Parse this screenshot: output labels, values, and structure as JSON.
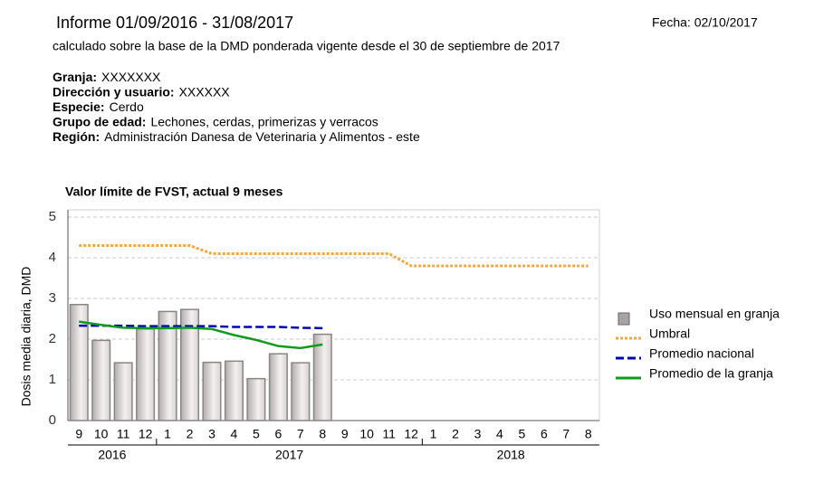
{
  "header": {
    "title": "Informe 01/09/2016 - 31/08/2017",
    "date": "Fecha: 02/10/2017",
    "subtitle": "calculado sobre la base de la DMD ponderada vigente desde el 30 de septiembre de 2017",
    "fields": [
      {
        "label": "Granja:",
        "value": "XXXXXXX"
      },
      {
        "label": "Dirección y usuario:",
        "value": "XXXXXX"
      },
      {
        "label": "Especie:",
        "value": "Cerdo"
      },
      {
        "label": "Grupo de edad:",
        "value": "Lechones, cerdas, primerizas y verracos"
      },
      {
        "label": "Región:",
        "value": "Administración Danesa de Veterinaria y Alimentos - este"
      }
    ]
  },
  "chart_data": {
    "type": "bar",
    "title": "Valor límite de FVST, actual 9 meses",
    "ylabel": "Dosis media diaria, DMD",
    "categories": [
      "9",
      "10",
      "11",
      "12",
      "1",
      "2",
      "3",
      "4",
      "5",
      "6",
      "7",
      "8",
      "9",
      "10",
      "11",
      "12",
      "1",
      "2",
      "3",
      "4",
      "5",
      "6",
      "7",
      "8"
    ],
    "x_groups": [
      {
        "label": "2016",
        "count": 4
      },
      {
        "label": "2017",
        "count": 12
      },
      {
        "label": "2018",
        "count": 8
      }
    ],
    "ylim": [
      0,
      5
    ],
    "yticks": [
      0,
      1,
      2,
      3,
      4,
      5
    ],
    "grid": true,
    "legend": "right",
    "series": [
      {
        "name": "Uso mensual en granja",
        "kind": "bar",
        "color": "#a8a2a2",
        "values": [
          2.85,
          1.97,
          1.42,
          2.25,
          2.68,
          2.73,
          1.43,
          1.46,
          1.03,
          1.64,
          1.42,
          2.12,
          null,
          null,
          null,
          null,
          null,
          null,
          null,
          null,
          null,
          null,
          null,
          null
        ]
      },
      {
        "name": "Umbral",
        "kind": "dotted",
        "color": "#f7a540",
        "values": [
          4.3,
          4.3,
          4.3,
          4.3,
          4.3,
          4.3,
          4.1,
          4.1,
          4.1,
          4.1,
          4.1,
          4.1,
          4.1,
          4.1,
          4.1,
          3.8,
          3.8,
          3.8,
          3.8,
          3.8,
          3.8,
          3.8,
          3.8,
          3.8
        ]
      },
      {
        "name": "Promedio nacional",
        "kind": "dashed",
        "color": "#0000b4",
        "values": [
          2.33,
          2.33,
          2.33,
          2.32,
          2.32,
          2.32,
          2.32,
          2.3,
          2.3,
          2.3,
          2.28,
          2.27,
          null,
          null,
          null,
          null,
          null,
          null,
          null,
          null,
          null,
          null,
          null,
          null
        ]
      },
      {
        "name": "Promedio de la granja",
        "kind": "solid",
        "color": "#129a1e",
        "values": [
          2.43,
          2.35,
          2.28,
          2.27,
          2.27,
          2.28,
          2.25,
          2.1,
          1.98,
          1.83,
          1.78,
          1.87,
          null,
          null,
          null,
          null,
          null,
          null,
          null,
          null,
          null,
          null,
          null,
          null
        ]
      }
    ]
  }
}
